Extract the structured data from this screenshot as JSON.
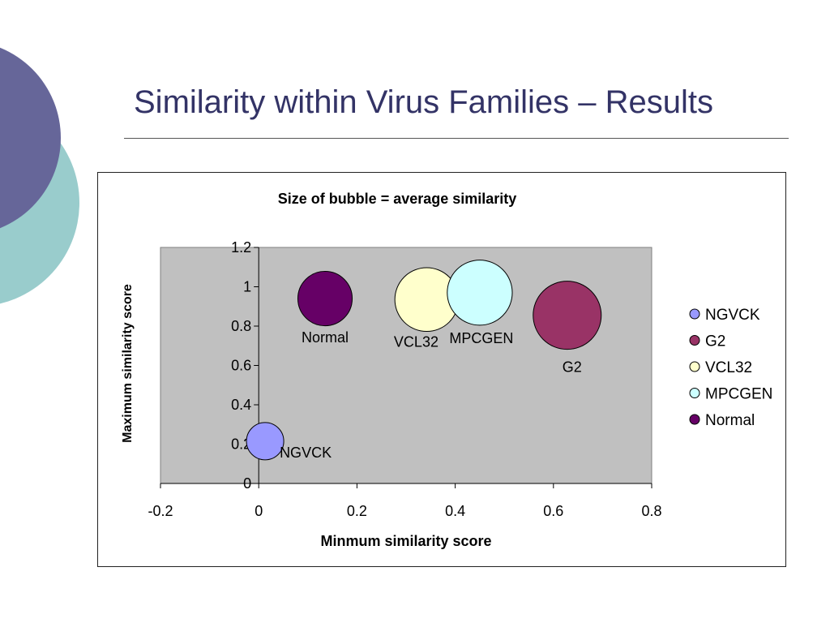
{
  "slide": {
    "title": "Similarity within Virus Families – Results"
  },
  "chart_data": {
    "type": "bubble",
    "title": "Size of bubble = average similarity",
    "xlabel": "Minmum similarity score",
    "ylabel": "Maximum similarity score",
    "xlim": [
      -0.2,
      0.8
    ],
    "ylim": [
      0,
      1.2
    ],
    "xticks": [
      "-0.2",
      "0",
      "0.2",
      "0.4",
      "0.6",
      "0.8"
    ],
    "yticks": [
      "0",
      "0.2",
      "0.4",
      "0.6",
      "0.8",
      "1",
      "1.2"
    ],
    "plot_background": "#c0c0c0",
    "grid": false,
    "legend_position": "right",
    "series": [
      {
        "name": "NGVCK",
        "x": 0.013,
        "y": 0.215,
        "size": 0.24,
        "color": "#9999ff",
        "label": "NGVCK"
      },
      {
        "name": "G2",
        "x": 0.628,
        "y": 0.855,
        "size": 0.8,
        "color": "#993366",
        "label": "G2"
      },
      {
        "name": "VCL32",
        "x": 0.342,
        "y": 0.935,
        "size": 0.7,
        "color": "#ffffcc",
        "label": "VCL32"
      },
      {
        "name": "MPCGEN",
        "x": 0.45,
        "y": 0.97,
        "size": 0.73,
        "color": "#ccffff",
        "label": "MPCGEN"
      },
      {
        "name": "Normal",
        "x": 0.135,
        "y": 0.94,
        "size": 0.51,
        "color": "#660066",
        "label": "Normal"
      }
    ],
    "legend_order": [
      "NGVCK",
      "G2",
      "VCL32",
      "MPCGEN",
      "Normal"
    ]
  }
}
